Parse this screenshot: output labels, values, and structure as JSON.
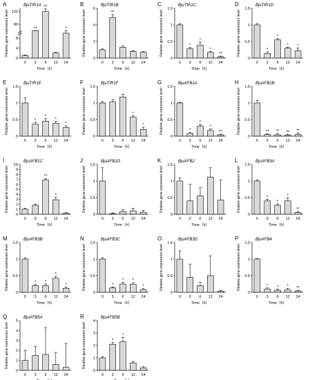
{
  "chart_data": [
    {
      "panel": "A",
      "gene": "BjuTIR1A",
      "type": "bar",
      "categories": [
        "0",
        "3",
        "6",
        "12",
        "24"
      ],
      "values": [
        1,
        50,
        120,
        2,
        10
      ],
      "errors": [
        0.3,
        4,
        8,
        0.3,
        1.5
      ],
      "stars": [
        "",
        "**",
        "**",
        "",
        "*"
      ],
      "ylim": [
        0,
        140
      ],
      "yticks": [
        0,
        4,
        8,
        80,
        120
      ],
      "axis_break": true,
      "xlabel": "Time（h）",
      "ylabel": "Relative gene expression level"
    },
    {
      "panel": "B",
      "gene": "BjuTIR1B",
      "type": "bar",
      "categories": [
        "0",
        "3",
        "6",
        "12",
        "24"
      ],
      "values": [
        1,
        4.9,
        1.3,
        0.8,
        0.7
      ],
      "errors": [
        0.1,
        0.35,
        0.15,
        0.1,
        0.1
      ],
      "stars": [
        "",
        "**",
        "",
        "",
        ""
      ],
      "ylim": [
        0,
        6
      ],
      "yticks": [
        0,
        2,
        4,
        6
      ],
      "xlabel": "Time（h）",
      "ylabel": "Relative gene expression level"
    },
    {
      "panel": "C",
      "gene": "BjuTIR1C",
      "type": "bar",
      "categories": [
        "0",
        "3",
        "6",
        "12",
        "24"
      ],
      "values": [
        1,
        0.28,
        0.38,
        0.17,
        0.04
      ],
      "errors": [
        0.03,
        0.04,
        0.1,
        0.03,
        0.02
      ],
      "stars": [
        "",
        "*",
        "*",
        "*",
        "**"
      ],
      "ylim": [
        0,
        1.5
      ],
      "yticks": [
        0,
        0.5,
        1,
        1.5
      ],
      "xlabel": "Time（h）",
      "ylabel": "Relative gene expression level"
    },
    {
      "panel": "D",
      "gene": "BjuTIR1D",
      "type": "bar",
      "categories": [
        "0",
        "3",
        "6",
        "12",
        "24"
      ],
      "values": [
        1,
        0.14,
        0.55,
        0.3,
        0.22
      ],
      "errors": [
        0.04,
        0.05,
        0.04,
        0.03,
        0.08
      ],
      "stars": [
        "",
        "*",
        "*",
        "*",
        "*"
      ],
      "ylim": [
        0,
        1.5
      ],
      "yticks": [
        0,
        0.5,
        1,
        1.5
      ],
      "xlabel": "Time（h）",
      "ylabel": "Relative gene expression level"
    },
    {
      "panel": "E",
      "gene": "BjuTIR1E",
      "type": "bar",
      "categories": [
        "0",
        "3",
        "6",
        "12",
        "24"
      ],
      "values": [
        1,
        0.36,
        0.45,
        0.38,
        0.26
      ],
      "errors": [
        0.15,
        0.06,
        0.08,
        0.06,
        0.05
      ],
      "stars": [
        "",
        "*",
        "*",
        "*",
        "*"
      ],
      "ylim": [
        0,
        1.5
      ],
      "yticks": [
        0,
        0.5,
        1,
        1.5
      ],
      "xlabel": "Time（h）",
      "ylabel": "Relative gene expression level"
    },
    {
      "panel": "F",
      "gene": "BjuTIR1F",
      "type": "bar",
      "categories": [
        "0",
        "3",
        "6",
        "12",
        "24"
      ],
      "values": [
        1,
        1.03,
        1.18,
        0.57,
        0.2
      ],
      "errors": [
        0.04,
        0.07,
        0.08,
        0.04,
        0.07
      ],
      "stars": [
        "",
        "",
        "",
        "*",
        "*"
      ],
      "ylim": [
        0,
        1.5
      ],
      "yticks": [
        0,
        0.5,
        1,
        1.5
      ],
      "xlabel": "Time（h）",
      "ylabel": "Relative gene expression level"
    },
    {
      "panel": "G",
      "gene": "BjuAFB1A",
      "type": "bar",
      "categories": [
        "0",
        "3",
        "6",
        "12",
        "24"
      ],
      "values": [
        1,
        0.08,
        0.3,
        0.17,
        0.04
      ],
      "errors": [
        0.02,
        0.03,
        0.05,
        0.05,
        0.02
      ],
      "stars": [
        "",
        "*",
        "*",
        "*",
        "**"
      ],
      "ylim": [
        0,
        1.5
      ],
      "yticks": [
        0,
        0.5,
        1,
        1.5
      ],
      "xlabel": "Time（h）",
      "ylabel": "Relative gene expression level"
    },
    {
      "panel": "H",
      "gene": "BjuAFB1B",
      "type": "bar",
      "categories": [
        "0",
        "3",
        "6",
        "12",
        "24"
      ],
      "values": [
        1,
        0.05,
        0.04,
        0.03,
        0.05
      ],
      "errors": [
        0.07,
        0.02,
        0.04,
        0.02,
        0.04
      ],
      "stars": [
        "",
        "**",
        "**",
        "**",
        "**"
      ],
      "ylim": [
        0,
        1.5
      ],
      "yticks": [
        0,
        0.5,
        1,
        1.5
      ],
      "xlabel": "Time（h）",
      "ylabel": "Relative gene expression level"
    },
    {
      "panel": "I",
      "gene": "BjuAFB1C",
      "type": "bar",
      "categories": [
        "0",
        "3",
        "6",
        "12",
        "24"
      ],
      "values": [
        1,
        1.8,
        6.9,
        2.9,
        0.2
      ],
      "errors": [
        0.2,
        0.2,
        0.3,
        0.5,
        0.1
      ],
      "stars": [
        "",
        "",
        "**",
        "*",
        ""
      ],
      "ylim": [
        0,
        10
      ],
      "yticks": [
        0,
        1,
        2,
        3,
        4,
        5,
        6,
        7,
        8,
        9,
        10
      ],
      "xlabel": "Time（h）",
      "ylabel": "Relative gene expression level"
    },
    {
      "panel": "J",
      "gene": "BjuAFB1D",
      "type": "bar",
      "categories": [
        "0",
        "3",
        "6",
        "12",
        "24"
      ],
      "values": [
        1,
        0.02,
        0.08,
        0.1,
        0.06
      ],
      "errors": [
        0.4,
        0.02,
        0.06,
        0.08,
        0.05
      ],
      "stars": [
        "",
        "",
        "",
        "",
        ""
      ],
      "ylim": [
        0,
        1.5
      ],
      "yticks": [
        0,
        0.5,
        1,
        1.5
      ],
      "xlabel": "Time（h）",
      "ylabel": "Relative gene expression level"
    },
    {
      "panel": "K",
      "gene": "BjuAFB2",
      "type": "bar",
      "categories": [
        "0",
        "3",
        "6",
        "12",
        "24"
      ],
      "values": [
        1,
        0.4,
        0.55,
        1.12,
        0.43
      ],
      "errors": [
        0.1,
        0.5,
        0.25,
        0.28,
        0.6
      ],
      "stars": [
        "",
        "",
        "",
        "",
        ""
      ],
      "ylim": [
        0,
        1.5
      ],
      "yticks": [
        0,
        0.5,
        1,
        1.5
      ],
      "xlabel": "Time（h）",
      "ylabel": "Relative gene expression level"
    },
    {
      "panel": "L",
      "gene": "BjuAFB3A",
      "type": "bar",
      "categories": [
        "0",
        "3",
        "6",
        "12",
        "24"
      ],
      "values": [
        1,
        0.4,
        0.27,
        0.4,
        0.05
      ],
      "errors": [
        0.03,
        0.05,
        0.04,
        0.09,
        0.03
      ],
      "stars": [
        "",
        "*",
        "*",
        "*",
        "**"
      ],
      "ylim": [
        0,
        1.5
      ],
      "yticks": [
        0,
        0.5,
        1,
        1.5
      ],
      "xlabel": "Time（h）",
      "ylabel": "Relative gene expression level"
    },
    {
      "panel": "M",
      "gene": "BjuAFB3B",
      "type": "bar",
      "categories": [
        "0",
        "3",
        "6",
        "12",
        "24"
      ],
      "values": [
        1,
        0.2,
        0.2,
        0.42,
        0.12
      ],
      "errors": [
        0.04,
        0.04,
        0.05,
        0.06,
        0.04
      ],
      "stars": [
        "",
        "*",
        "*",
        "*",
        "*"
      ],
      "ylim": [
        0,
        1.5
      ],
      "yticks": [
        0,
        0.5,
        1,
        1.5
      ],
      "xlabel": "Time（h）",
      "ylabel": "Relative gene expression level"
    },
    {
      "panel": "N",
      "gene": "BjuAFB3C",
      "type": "bar",
      "categories": [
        "0",
        "3",
        "6",
        "12",
        "24"
      ],
      "values": [
        1,
        0.13,
        0.25,
        0.24,
        0.08
      ],
      "errors": [
        0.04,
        0.03,
        0.05,
        0.05,
        0.03
      ],
      "stars": [
        "",
        "*",
        "*",
        "*",
        "*"
      ],
      "ylim": [
        0,
        1.5
      ],
      "yticks": [
        0,
        0.5,
        1,
        1.5
      ],
      "xlabel": "Time（h）",
      "ylabel": "Relative gene expression level"
    },
    {
      "panel": "O",
      "gene": "BjuAFB3D",
      "type": "bar",
      "categories": [
        "0",
        "3",
        "6",
        "12",
        "24"
      ],
      "values": [
        1,
        0.45,
        0.2,
        0.5,
        0.03
      ],
      "errors": [
        0.25,
        0.4,
        0.1,
        0.6,
        0.03
      ],
      "stars": [
        "",
        "",
        "",
        "",
        ""
      ],
      "ylim": [
        0,
        1.5
      ],
      "yticks": [
        0,
        0.5,
        1,
        1.5
      ],
      "xlabel": "Time（h）",
      "ylabel": "Relative gene expression level"
    },
    {
      "panel": "P",
      "gene": "BjuAFB4",
      "type": "bar",
      "categories": [
        "0",
        "3",
        "6",
        "12",
        "24"
      ],
      "values": [
        1,
        0.1,
        0.06,
        0.07,
        0.04
      ],
      "errors": [
        0.02,
        0.03,
        0.03,
        0.05,
        0.02
      ],
      "stars": [
        "",
        "*",
        "*",
        "*",
        "**"
      ],
      "ylim": [
        0,
        1.5
      ],
      "yticks": [
        0,
        0.5,
        1,
        1.5
      ],
      "xlabel": "Time（h）",
      "ylabel": "Relative gene expression level"
    },
    {
      "panel": "Q",
      "gene": "BjuAFB5A",
      "type": "bar",
      "categories": [
        "0",
        "3",
        "6",
        "12",
        "24"
      ],
      "values": [
        1,
        1.5,
        1.6,
        0.6,
        0.3
      ],
      "errors": [
        1,
        0.9,
        2.7,
        1.2,
        2.4
      ],
      "stars": [
        "",
        "",
        "",
        "",
        ""
      ],
      "ylim": [
        0,
        5
      ],
      "yticks": [
        0,
        1,
        2,
        3,
        4,
        5
      ],
      "xlabel": "Time（h）",
      "ylabel": "Relative gene expression level"
    },
    {
      "panel": "R",
      "gene": "BjuAFB5B",
      "type": "bar",
      "categories": [
        "0",
        "3",
        "6",
        "12",
        "24"
      ],
      "values": [
        1,
        2.1,
        2.3,
        0.6,
        0.2
      ],
      "errors": [
        0.1,
        0.15,
        0.35,
        0.12,
        0.1
      ],
      "stars": [
        "",
        "*",
        "*",
        "",
        ""
      ],
      "ylim": [
        0,
        4
      ],
      "yticks": [
        0,
        1,
        2,
        3,
        4
      ],
      "xlabel": "Time（h）",
      "ylabel": "Relative gene expression level"
    }
  ]
}
